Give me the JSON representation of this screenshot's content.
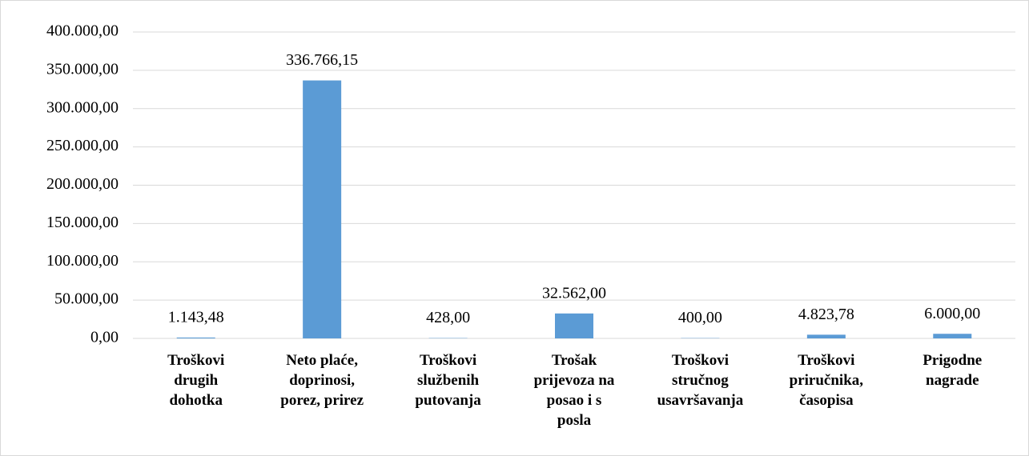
{
  "chart_data": {
    "type": "bar",
    "categories": [
      "Troškovi drugih dohotka",
      "Neto plaće, doprinosi, porez, prirez",
      "Troškovi službenih putovanja",
      "Trošak prijevoza na posao i s posla",
      "Troškovi stručnog usavršavanja",
      "Troškovi priručnika, časopisa",
      "Prigodne nagrade"
    ],
    "values": [
      1143.48,
      336766.15,
      428,
      32562,
      400,
      4823.78,
      6000
    ],
    "value_labels": [
      "1.143,48",
      "336.766,15",
      "428,00",
      "32.562,00",
      "400,00",
      "4.823,78",
      "6.000,00"
    ],
    "color": "#5b9bd5",
    "ylim": [
      0,
      400000
    ],
    "yticks": [
      {
        "value": 0,
        "label": "0,00"
      },
      {
        "value": 50000,
        "label": "50.000,00"
      },
      {
        "value": 100000,
        "label": "100.000,00"
      },
      {
        "value": 150000,
        "label": "150.000,00"
      },
      {
        "value": 200000,
        "label": "200.000,00"
      },
      {
        "value": 250000,
        "label": "250.000,00"
      },
      {
        "value": 300000,
        "label": "300.000,00"
      },
      {
        "value": 350000,
        "label": "350.000,00"
      },
      {
        "value": 400000,
        "label": "400.000,00"
      }
    ],
    "grid": true
  }
}
